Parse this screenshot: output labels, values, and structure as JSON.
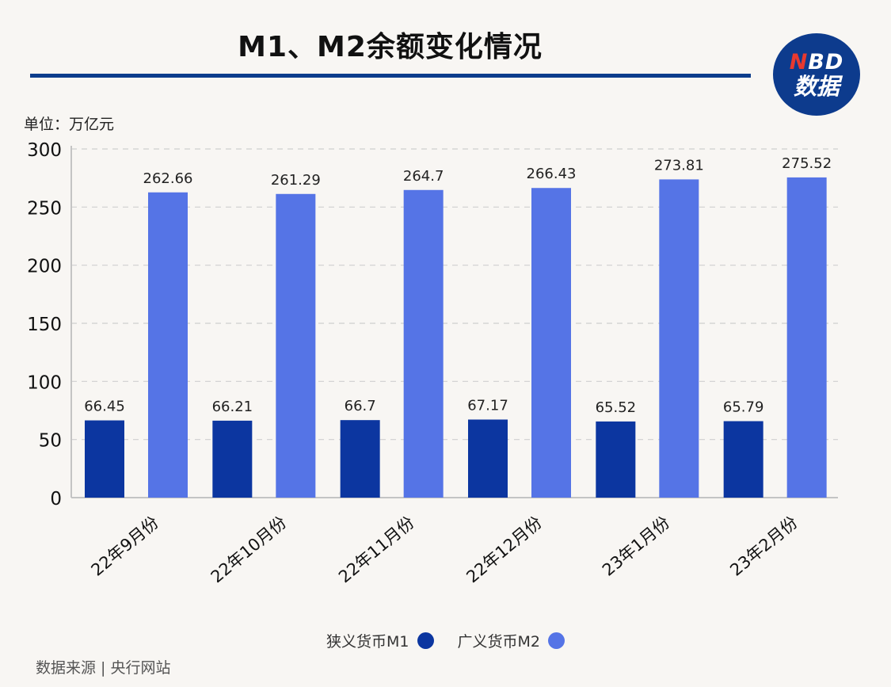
{
  "title": "M1、M2余额变化情况",
  "logo": {
    "top_n": "N",
    "top_rest": "BD",
    "bottom": "数据"
  },
  "unit_label": "单位：万亿元",
  "source": "数据来源 | 央行网站",
  "colors": {
    "m1": "#0c36a0",
    "m2": "#5574e6",
    "rule": "#0c3d8c"
  },
  "chart_data": {
    "type": "bar",
    "categories": [
      "22年9月份",
      "22年10月份",
      "22年11月份",
      "22年12月份",
      "23年1月份",
      "23年2月份"
    ],
    "series": [
      {
        "name": "狭义货币M1",
        "values": [
          66.45,
          66.21,
          66.7,
          67.17,
          65.52,
          65.79
        ],
        "labels": [
          "66.45",
          "66.21",
          "66.7",
          "67.17",
          "65.52",
          "65.79"
        ]
      },
      {
        "name": "广义货币M2",
        "values": [
          262.66,
          261.29,
          264.7,
          266.43,
          273.81,
          275.52
        ],
        "labels": [
          "262.66",
          "261.29",
          "264.7",
          "266.43",
          "273.81",
          "275.52"
        ]
      }
    ],
    "ylim": [
      0,
      300
    ],
    "yticks": [
      0,
      50,
      100,
      150,
      200,
      250,
      300
    ],
    "grid": true,
    "legend_position": "bottom"
  }
}
